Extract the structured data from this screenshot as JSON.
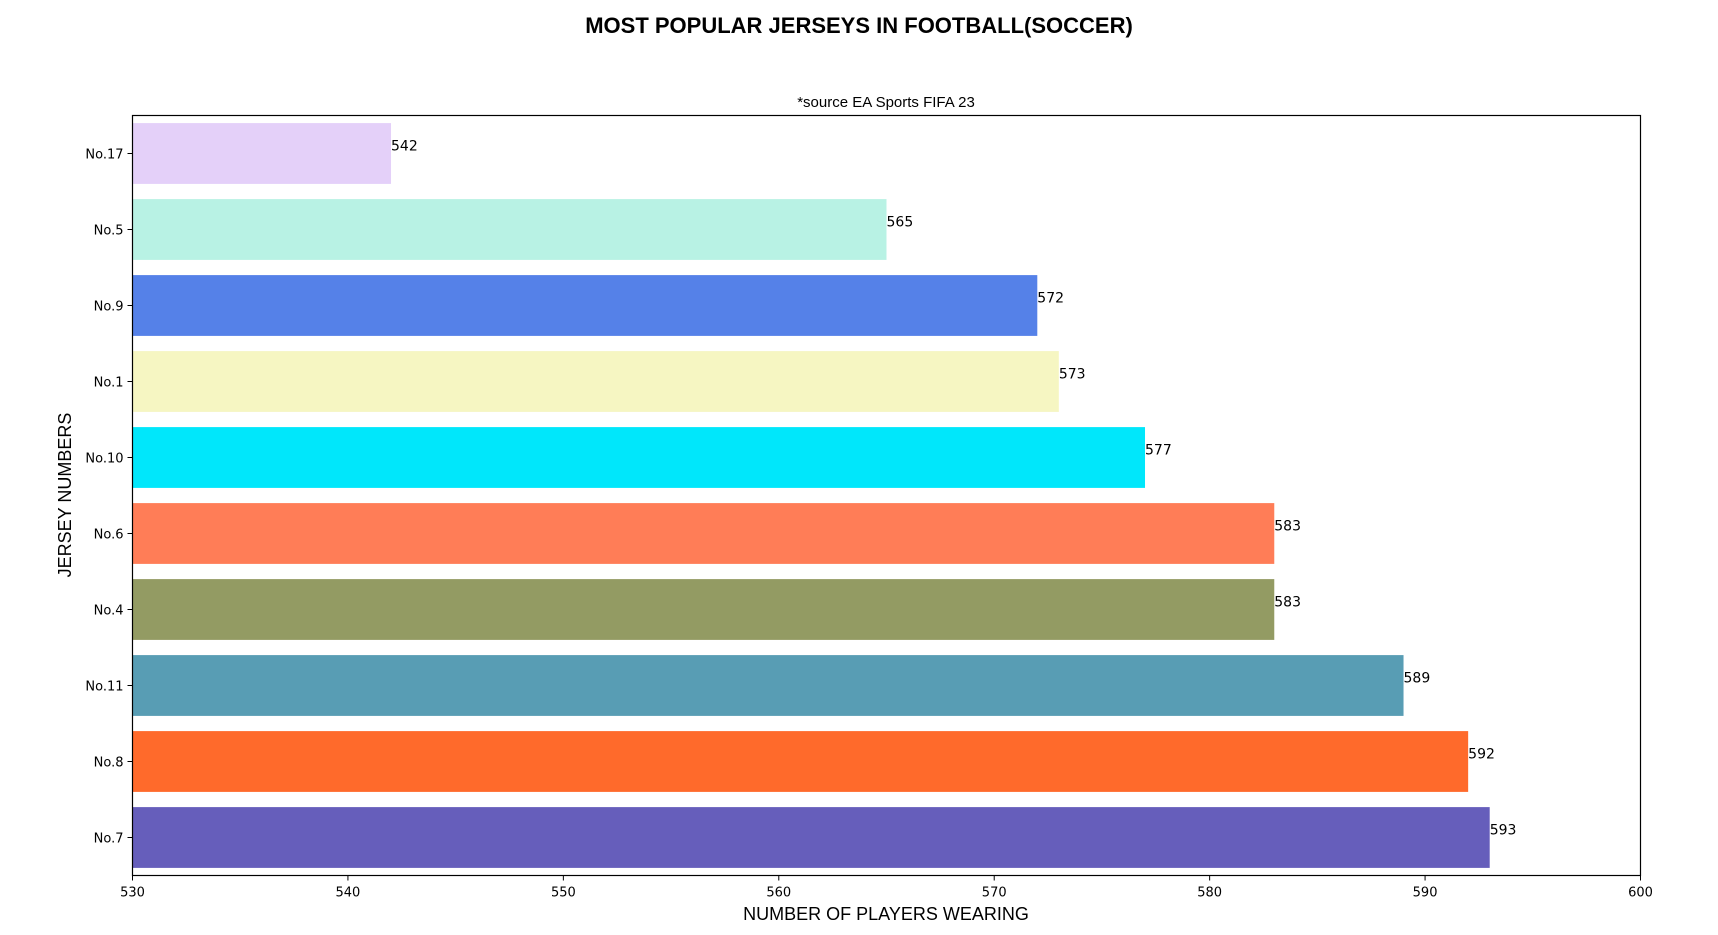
{
  "chart_data": {
    "type": "bar",
    "orientation": "horizontal",
    "title": "MOST POPULAR JERSEYS IN FOOTBALL(SOCCER)",
    "subtitle": "*source EA Sports FIFA 23",
    "xlabel": "NUMBER OF PLAYERS WEARING",
    "ylabel": "JERSEY NUMBERS",
    "xlim": [
      530,
      600
    ],
    "xticks": [
      530,
      540,
      550,
      560,
      570,
      580,
      590,
      600
    ],
    "grid": false,
    "categories": [
      "No.7",
      "No.8",
      "No.11",
      "No.4",
      "No.6",
      "No.10",
      "No.1",
      "No.9",
      "No.5",
      "No.17"
    ],
    "values": [
      593,
      592,
      589,
      583,
      583,
      577,
      573,
      572,
      565,
      542
    ],
    "colors": [
      "#665ebb",
      "#ff6a2b",
      "#589db4",
      "#939b63",
      "#ff7d57",
      "#00e7fb",
      "#f6f6c2",
      "#5581e8",
      "#b8f2e4",
      "#e4d0f9"
    ]
  }
}
